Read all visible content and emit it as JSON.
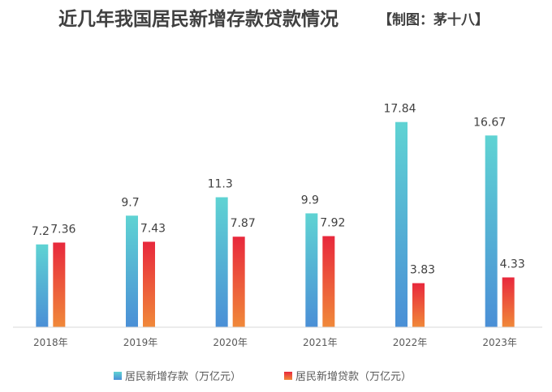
{
  "chart_data": {
    "type": "bar",
    "title": "近几年我国居民新增存款贷款情况",
    "subtitle": "【制图：茅十八】",
    "categories": [
      "2018年",
      "2019年",
      "2020年",
      "2021年",
      "2022年",
      "2023年"
    ],
    "series": [
      {
        "name": "居民新增存款（万亿元）",
        "values": [
          7.2,
          9.7,
          11.3,
          9.9,
          17.84,
          16.67
        ],
        "labels": [
          "7.2",
          "9.7",
          "11.3",
          "9.9",
          "17.84",
          "16.67"
        ],
        "color_top": "#5fd3d3",
        "color_bottom": "#4a8fd6"
      },
      {
        "name": "居民新增贷款（万亿元）",
        "values": [
          7.36,
          7.43,
          7.87,
          7.92,
          3.83,
          4.33
        ],
        "labels": [
          "7.36",
          "7.43",
          "7.87",
          "7.92",
          "3.83",
          "4.33"
        ],
        "color_top": "#e8283c",
        "color_bottom": "#f0893a"
      }
    ],
    "ylim": [
      0,
      20
    ],
    "grid": false,
    "legend_position": "bottom"
  }
}
